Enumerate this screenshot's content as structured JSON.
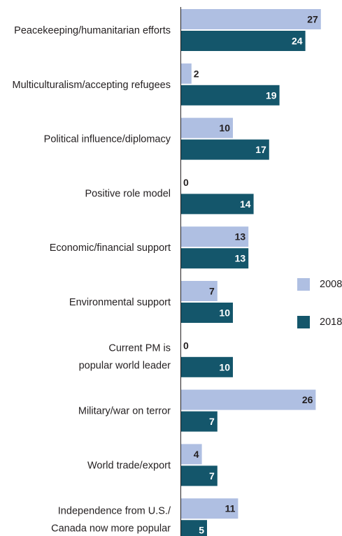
{
  "chart_data": {
    "type": "bar",
    "orientation": "horizontal",
    "categories": [
      "Peacekeeping/humanitarian efforts",
      "Multiculturalism/accepting refugees",
      "Political influence/diplomacy",
      "Positive role model",
      "Economic/financial support",
      "Environmental support",
      "Current PM is popular world leader",
      "Military/war on terror",
      "World trade/export",
      "Independence from U.S./ Canada now more popular"
    ],
    "category_lines": [
      [
        "Peacekeeping/humanitarian efforts"
      ],
      [
        "Multiculturalism/accepting refugees"
      ],
      [
        "Political influence/diplomacy"
      ],
      [
        "Positive role model"
      ],
      [
        "Economic/financial support"
      ],
      [
        "Environmental support"
      ],
      [
        "Current PM is",
        "popular world leader"
      ],
      [
        "Military/war on terror"
      ],
      [
        "World trade/export"
      ],
      [
        "Independence from U.S./",
        "Canada now more popular"
      ]
    ],
    "series": [
      {
        "name": "2008",
        "color": "#afbfe2",
        "values": [
          27,
          2,
          10,
          0,
          13,
          7,
          0,
          26,
          4,
          11
        ]
      },
      {
        "name": "2018",
        "color": "#14566b",
        "values": [
          24,
          19,
          17,
          14,
          13,
          10,
          10,
          7,
          7,
          5
        ]
      }
    ],
    "legend_position": "right",
    "grid": false,
    "value_labels": true
  }
}
